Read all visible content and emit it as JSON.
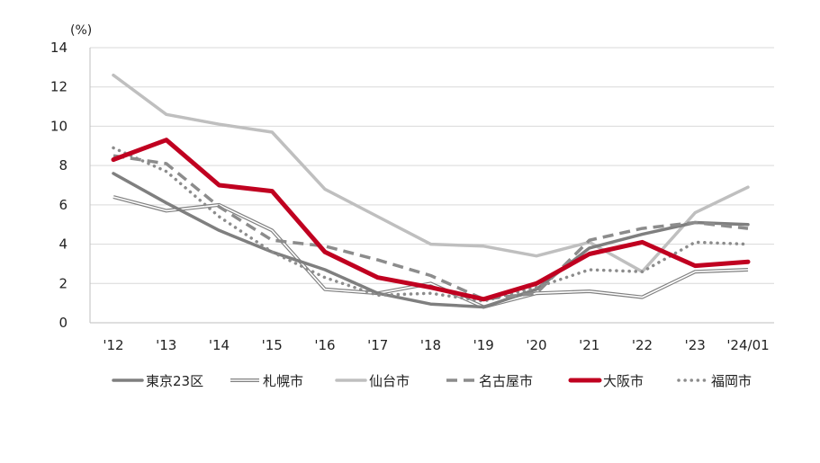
{
  "chart_data": {
    "type": "line",
    "unit_label": "(%)",
    "categories": [
      "'12",
      "'13",
      "'14",
      "'15",
      "'16",
      "'17",
      "'18",
      "'19",
      "'20",
      "'21",
      "'22",
      "'23",
      "'24/01"
    ],
    "ylim": [
      0,
      14
    ],
    "yticks": [
      "0",
      "2",
      "4",
      "6",
      "8",
      "10",
      "12",
      "14"
    ],
    "grid": "horizontal",
    "legend_position": "bottom",
    "series": [
      {
        "name": "東京23区",
        "color": "#7f7f7f",
        "style": "solid-thick",
        "values": [
          7.6,
          6.1,
          4.7,
          3.6,
          2.7,
          1.5,
          0.95,
          0.8,
          1.7,
          3.8,
          4.5,
          5.1,
          5.0
        ]
      },
      {
        "name": "札幌市",
        "color": "#808080",
        "style": "double",
        "values": [
          6.4,
          5.7,
          6.0,
          4.7,
          1.7,
          1.5,
          2.0,
          0.8,
          1.5,
          1.6,
          1.3,
          2.6,
          2.7
        ]
      },
      {
        "name": "仙台市",
        "color": "#bfbfbf",
        "style": "solid-thick",
        "values": [
          12.6,
          10.6,
          10.1,
          9.7,
          6.8,
          5.4,
          4.0,
          3.9,
          3.4,
          4.1,
          2.6,
          5.6,
          6.9
        ]
      },
      {
        "name": "名古屋市",
        "color": "#8c8c8c",
        "style": "dashed",
        "values": [
          8.5,
          8.1,
          5.9,
          4.2,
          3.9,
          3.2,
          2.4,
          1.2,
          1.5,
          4.2,
          4.8,
          5.1,
          4.8
        ]
      },
      {
        "name": "大阪市",
        "color": "#c00020",
        "style": "solid-bold",
        "values": [
          8.3,
          9.3,
          7.0,
          6.7,
          3.6,
          2.3,
          1.8,
          1.2,
          2.0,
          3.5,
          4.1,
          2.9,
          3.1
        ]
      },
      {
        "name": "福岡市",
        "color": "#8c8c8c",
        "style": "dotted",
        "values": [
          8.9,
          7.7,
          5.4,
          3.6,
          2.3,
          1.4,
          1.5,
          1.1,
          1.8,
          2.7,
          2.6,
          4.1,
          4.0
        ]
      }
    ]
  }
}
